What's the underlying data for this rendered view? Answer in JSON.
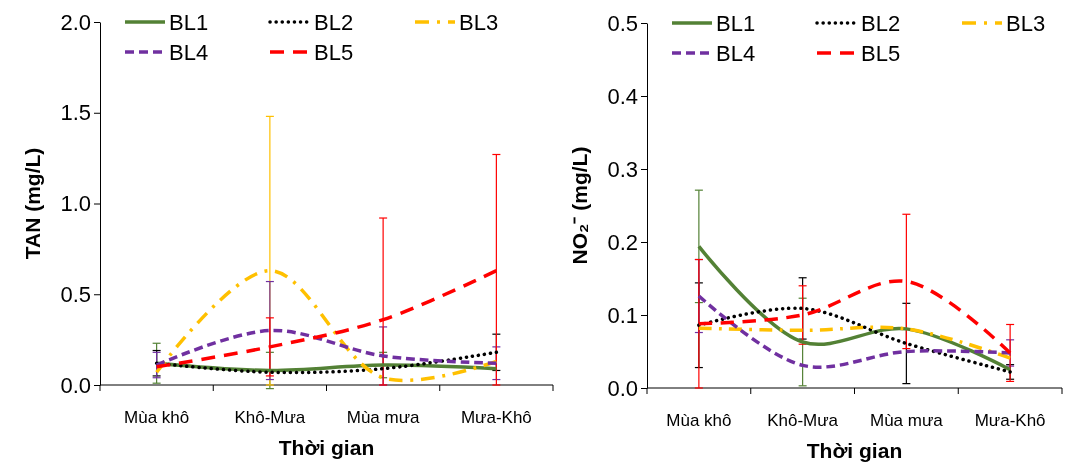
{
  "chart_data": [
    {
      "type": "line",
      "xlabel": "Thời gian",
      "ylabel": "TAN (mg/L)",
      "categories": [
        "Mùa khô",
        "Khô-Mưa",
        "Mùa mưa",
        "Mưa-Khô"
      ],
      "ylim": [
        0,
        2
      ],
      "yticks": [
        {
          "value": 0,
          "label": "0.0"
        },
        {
          "value": 0.5,
          "label": "0.5"
        },
        {
          "value": 1,
          "label": "1.0"
        },
        {
          "value": 1.5,
          "label": "1.5"
        },
        {
          "value": 2,
          "label": "2.0"
        }
      ],
      "grid": false,
      "legend": "top",
      "marker": "none",
      "series": [
        {
          "name": "BL1",
          "color": "#538135",
          "line_style": "solid",
          "values": [
            0.12,
            0.08,
            0.11,
            0.09
          ],
          "errors": [
            0.11,
            0.1,
            0.07,
            null
          ]
        },
        {
          "name": "BL2",
          "color": "#000000",
          "line_style": "dotted",
          "values": [
            0.12,
            0.07,
            0.09,
            0.18
          ],
          "errors": [
            0.07,
            null,
            null,
            0.1
          ]
        },
        {
          "name": "BL3",
          "color": "#ffc000",
          "line_style": "dashed",
          "values": [
            0.07,
            0.63,
            0.04,
            0.13
          ],
          "errors": [
            null,
            [
              0,
              1.48
            ],
            null,
            null
          ]
        },
        {
          "name": "BL4",
          "color": "#7030a0",
          "line_style": "dashed",
          "values": [
            0.11,
            0.3,
            0.16,
            0.12
          ],
          "errors": [
            0.07,
            0.27,
            0.16,
            0.09
          ]
        },
        {
          "name": "BL5",
          "color": "#ff0000",
          "line_style": "dashed",
          "values": [
            0.1,
            0.21,
            0.36,
            0.63
          ],
          "errors": [
            null,
            0.16,
            [
              0,
              0.92
            ],
            [
              0,
              1.27
            ]
          ]
        }
      ]
    },
    {
      "type": "line",
      "xlabel": "Thời gian",
      "ylabel": "NO₂⁻ (mg/L)",
      "categories": [
        "Mùa khô",
        "Khô-Mưa",
        "Mùa mưa",
        "Mưa-Khô"
      ],
      "ylim": [
        0,
        0.5
      ],
      "yticks": [
        {
          "value": 0,
          "label": "0.0"
        },
        0.1,
        0.2,
        0.3,
        0.4,
        0.5
      ],
      "grid": false,
      "legend": "top",
      "marker": "none",
      "series": [
        {
          "name": "BL1",
          "color": "#538135",
          "line_style": "solid",
          "values": [
            0.194,
            0.063,
            0.081,
            0.025
          ],
          "errors": [
            0.077,
            0.06,
            null,
            null
          ]
        },
        {
          "name": "BL2",
          "color": "#000000",
          "line_style": "dotted",
          "values": [
            0.086,
            0.109,
            0.061,
            0.022
          ],
          "errors": [
            0.058,
            0.042,
            0.055,
            0.01
          ]
        },
        {
          "name": "BL3",
          "color": "#ffc000",
          "line_style": "dashed",
          "values": [
            0.082,
            0.079,
            0.081,
            0.041
          ],
          "errors": [
            null,
            null,
            null,
            null
          ]
        },
        {
          "name": "BL4",
          "color": "#7030a0",
          "line_style": "dashed",
          "values": [
            0.126,
            0.031,
            0.05,
            0.048
          ],
          "errors": [
            0.05,
            null,
            null,
            0.018
          ]
        },
        {
          "name": "BL5",
          "color": "#ff0000",
          "line_style": "dashed",
          "values": [
            0.088,
            0.1,
            0.146,
            0.048
          ],
          "errors": [
            0.088,
            0.04,
            0.092,
            0.039
          ]
        }
      ]
    }
  ]
}
